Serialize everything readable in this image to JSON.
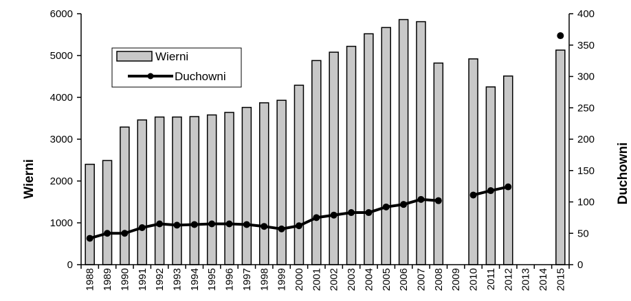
{
  "chart_data": {
    "type": "bar",
    "categories": [
      "1988",
      "1989",
      "1990",
      "1991",
      "1992",
      "1993",
      "1994",
      "1995",
      "1996",
      "1997",
      "1998",
      "1999",
      "2000",
      "2001",
      "2002",
      "2003",
      "2004",
      "2005",
      "2006",
      "2007",
      "2008",
      "2009",
      "2010",
      "2011",
      "2012",
      "2013",
      "2014",
      "2015"
    ],
    "series": [
      {
        "name": "Wierni",
        "type": "bar",
        "axis": "left",
        "color": "#c8c8c8",
        "values": [
          2400,
          2490,
          3290,
          3460,
          3530,
          3530,
          3540,
          3580,
          3640,
          3760,
          3870,
          3930,
          4290,
          4880,
          5080,
          5220,
          5520,
          5670,
          5860,
          5810,
          4820,
          null,
          4920,
          4250,
          4510,
          null,
          null,
          5130
        ]
      },
      {
        "name": "Duchowni",
        "type": "line",
        "axis": "right",
        "color": "#000000",
        "values": [
          42,
          50,
          50,
          59,
          65,
          63,
          64,
          65,
          65,
          64,
          61,
          57,
          62,
          75,
          79,
          83,
          83,
          92,
          96,
          104,
          102,
          null,
          111,
          118,
          124,
          null,
          null,
          365
        ]
      }
    ],
    "ylabel": "Wierni",
    "y2label": "Duchowni",
    "ylim": [
      0,
      6000
    ],
    "y2lim": [
      0,
      400
    ],
    "yticks": [
      "0",
      "1000",
      "2000",
      "3000",
      "4000",
      "5000",
      "6000"
    ],
    "y2ticks": [
      "0",
      "50",
      "100",
      "150",
      "200",
      "250",
      "300",
      "350",
      "400"
    ],
    "grid": false,
    "legend_placement": "top-left"
  }
}
